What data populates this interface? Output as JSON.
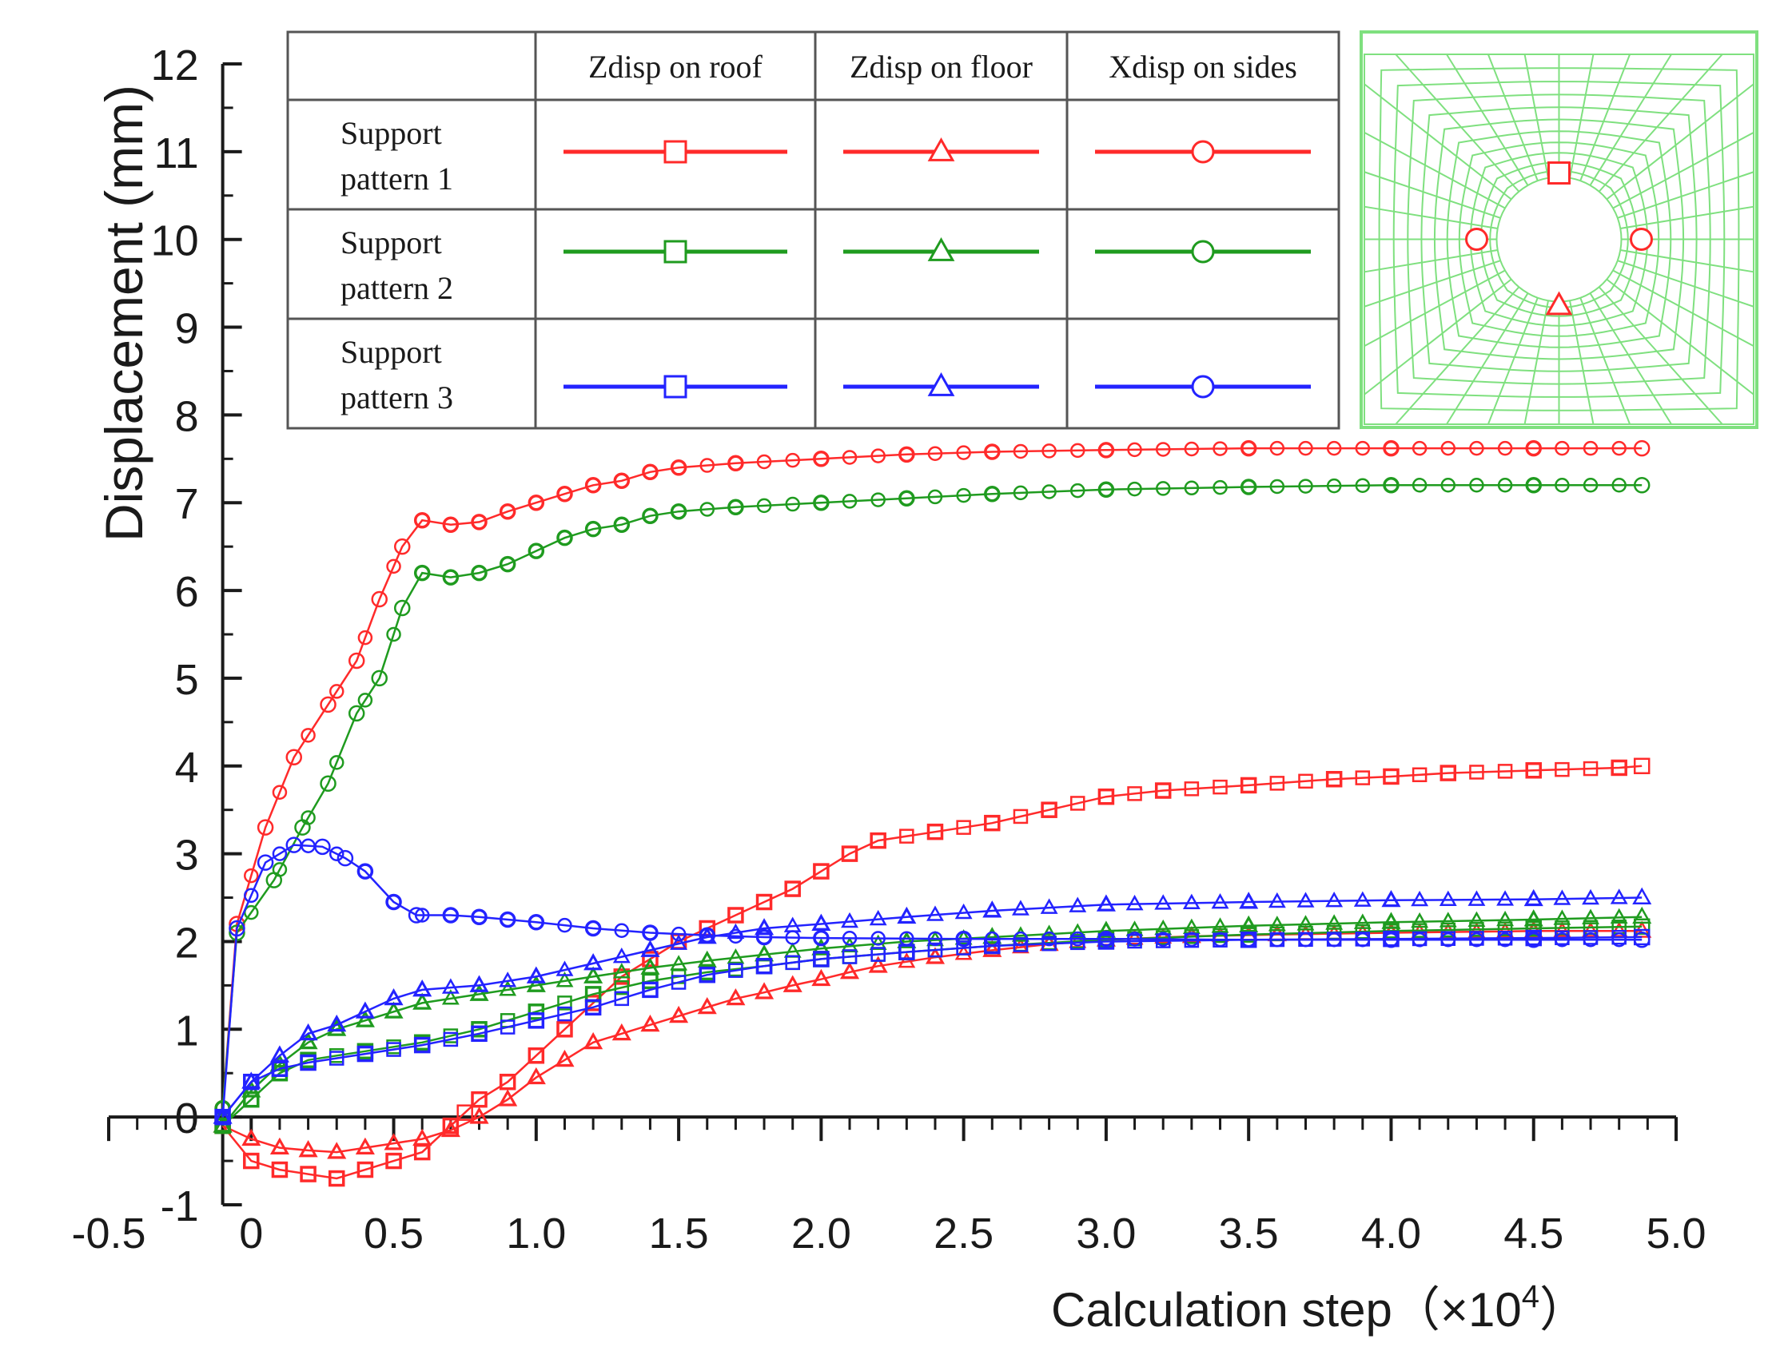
{
  "chart_data": {
    "type": "line",
    "title": "",
    "xlabel": "Calculation step（×10",
    "xlabel_exponent": "4",
    "xlabel_close": "）",
    "ylabel": "Displacement (mm)",
    "xlim": [
      -0.5,
      5.0
    ],
    "ylim": [
      -1,
      12
    ],
    "x_ticks": [
      -0.5,
      0,
      0.5,
      1.0,
      1.5,
      2.0,
      2.5,
      3.0,
      3.5,
      4.0,
      4.5,
      5.0
    ],
    "x_tick_labels": [
      "-0.5",
      "0",
      "0.5",
      "1.0",
      "1.5",
      "2.0",
      "2.5",
      "3.0",
      "3.5",
      "4.0",
      "4.5",
      "5.0"
    ],
    "y_ticks": [
      -1,
      0,
      1,
      2,
      3,
      4,
      5,
      6,
      7,
      8,
      9,
      10,
      11,
      12
    ],
    "y_tick_labels": [
      "-1",
      "0",
      "1",
      "2",
      "3",
      "4",
      "5",
      "6",
      "7",
      "8",
      "9",
      "10",
      "11",
      "12"
    ],
    "colors": {
      "pattern1": "#ff2a2a",
      "pattern2": "#1f9b1f",
      "pattern3": "#2323ff",
      "mesh": "#7fe07f"
    },
    "legend": {
      "column_headers": [
        "Zdisp on roof",
        "Zdisp on floor",
        "Xdisp on sides"
      ],
      "rows": [
        {
          "label_line1": "Support",
          "label_line2": "pattern 1",
          "color": "#ff2a2a"
        },
        {
          "label_line1": "Support",
          "label_line2": "pattern 2",
          "color": "#1f9b1f"
        },
        {
          "label_line1": "Support",
          "label_line2": "pattern 3",
          "color": "#2323ff"
        }
      ],
      "markers": [
        "square",
        "triangle",
        "circle"
      ]
    },
    "series": [
      {
        "name": "Support pattern 1 - Zdisp on roof",
        "color": "#ff2a2a",
        "marker": "square",
        "points": [
          [
            -0.1,
            -0.1
          ],
          [
            0,
            -0.5
          ],
          [
            0.1,
            -0.6
          ],
          [
            0.2,
            -0.65
          ],
          [
            0.3,
            -0.7
          ],
          [
            0.4,
            -0.6
          ],
          [
            0.5,
            -0.5
          ],
          [
            0.6,
            -0.4
          ],
          [
            0.7,
            -0.1
          ],
          [
            0.75,
            0.05
          ],
          [
            0.8,
            0.2
          ],
          [
            0.9,
            0.4
          ],
          [
            1.0,
            0.7
          ],
          [
            1.1,
            1.0
          ],
          [
            1.2,
            1.3
          ],
          [
            1.3,
            1.6
          ],
          [
            1.4,
            1.8
          ],
          [
            1.5,
            2.0
          ],
          [
            1.6,
            2.15
          ],
          [
            1.7,
            2.3
          ],
          [
            1.8,
            2.45
          ],
          [
            1.9,
            2.6
          ],
          [
            2.0,
            2.8
          ],
          [
            2.1,
            3.0
          ],
          [
            2.2,
            3.15
          ],
          [
            2.4,
            3.25
          ],
          [
            2.6,
            3.35
          ],
          [
            2.8,
            3.5
          ],
          [
            3.0,
            3.65
          ],
          [
            3.2,
            3.72
          ],
          [
            3.5,
            3.78
          ],
          [
            3.8,
            3.85
          ],
          [
            4.0,
            3.88
          ],
          [
            4.2,
            3.92
          ],
          [
            4.5,
            3.95
          ],
          [
            4.8,
            3.98
          ],
          [
            4.88,
            4.0
          ]
        ]
      },
      {
        "name": "Support pattern 1 - Zdisp on floor",
        "color": "#ff2a2a",
        "marker": "triangle",
        "points": [
          [
            -0.1,
            -0.1
          ],
          [
            0,
            -0.25
          ],
          [
            0.1,
            -0.35
          ],
          [
            0.2,
            -0.38
          ],
          [
            0.3,
            -0.4
          ],
          [
            0.4,
            -0.35
          ],
          [
            0.5,
            -0.3
          ],
          [
            0.6,
            -0.25
          ],
          [
            0.7,
            -0.15
          ],
          [
            0.8,
            0.0
          ],
          [
            0.9,
            0.2
          ],
          [
            1.0,
            0.45
          ],
          [
            1.1,
            0.65
          ],
          [
            1.2,
            0.85
          ],
          [
            1.3,
            0.95
          ],
          [
            1.4,
            1.05
          ],
          [
            1.5,
            1.15
          ],
          [
            1.6,
            1.25
          ],
          [
            1.7,
            1.35
          ],
          [
            1.8,
            1.42
          ],
          [
            1.9,
            1.5
          ],
          [
            2.0,
            1.57
          ],
          [
            2.1,
            1.65
          ],
          [
            2.2,
            1.72
          ],
          [
            2.4,
            1.82
          ],
          [
            2.6,
            1.9
          ],
          [
            2.8,
            1.97
          ],
          [
            3.0,
            2.02
          ],
          [
            3.3,
            2.06
          ],
          [
            3.6,
            2.08
          ],
          [
            4.0,
            2.1
          ],
          [
            4.5,
            2.12
          ],
          [
            4.88,
            2.12
          ]
        ]
      },
      {
        "name": "Support pattern 1 - Xdisp on sides",
        "color": "#ff2a2a",
        "marker": "circle",
        "points": [
          [
            -0.1,
            0.1
          ],
          [
            -0.05,
            2.2
          ],
          [
            0.05,
            3.3
          ],
          [
            0.15,
            4.1
          ],
          [
            0.27,
            4.7
          ],
          [
            0.37,
            5.2
          ],
          [
            0.45,
            5.9
          ],
          [
            0.53,
            6.5
          ],
          [
            0.6,
            6.8
          ],
          [
            0.7,
            6.75
          ],
          [
            0.8,
            6.78
          ],
          [
            0.9,
            6.9
          ],
          [
            1.0,
            7.0
          ],
          [
            1.1,
            7.1
          ],
          [
            1.2,
            7.2
          ],
          [
            1.3,
            7.25
          ],
          [
            1.4,
            7.35
          ],
          [
            1.5,
            7.4
          ],
          [
            1.7,
            7.45
          ],
          [
            2.0,
            7.5
          ],
          [
            2.3,
            7.55
          ],
          [
            2.6,
            7.58
          ],
          [
            3.0,
            7.6
          ],
          [
            3.5,
            7.62
          ],
          [
            4.0,
            7.62
          ],
          [
            4.5,
            7.62
          ],
          [
            4.88,
            7.62
          ]
        ]
      },
      {
        "name": "Support pattern 2 - Zdisp on roof",
        "color": "#1f9b1f",
        "marker": "square",
        "points": [
          [
            -0.1,
            -0.1
          ],
          [
            0,
            0.2
          ],
          [
            0.1,
            0.5
          ],
          [
            0.2,
            0.65
          ],
          [
            0.4,
            0.75
          ],
          [
            0.6,
            0.85
          ],
          [
            0.8,
            1.0
          ],
          [
            1.0,
            1.2
          ],
          [
            1.2,
            1.4
          ],
          [
            1.4,
            1.55
          ],
          [
            1.6,
            1.65
          ],
          [
            1.8,
            1.72
          ],
          [
            2.0,
            1.8
          ],
          [
            2.3,
            1.88
          ],
          [
            2.6,
            1.95
          ],
          [
            3.0,
            2.02
          ],
          [
            3.5,
            2.08
          ],
          [
            4.0,
            2.12
          ],
          [
            4.5,
            2.15
          ],
          [
            4.88,
            2.17
          ]
        ]
      },
      {
        "name": "Support pattern 2 - Zdisp on floor",
        "color": "#1f9b1f",
        "marker": "triangle",
        "points": [
          [
            -0.1,
            -0.1
          ],
          [
            0,
            0.3
          ],
          [
            0.1,
            0.6
          ],
          [
            0.2,
            0.85
          ],
          [
            0.3,
            1.0
          ],
          [
            0.4,
            1.1
          ],
          [
            0.5,
            1.2
          ],
          [
            0.6,
            1.3
          ],
          [
            0.8,
            1.4
          ],
          [
            1.0,
            1.5
          ],
          [
            1.2,
            1.6
          ],
          [
            1.4,
            1.7
          ],
          [
            1.6,
            1.78
          ],
          [
            1.8,
            1.85
          ],
          [
            2.0,
            1.92
          ],
          [
            2.3,
            2.0
          ],
          [
            2.6,
            2.05
          ],
          [
            3.0,
            2.12
          ],
          [
            3.5,
            2.18
          ],
          [
            4.0,
            2.22
          ],
          [
            4.5,
            2.25
          ],
          [
            4.88,
            2.28
          ]
        ]
      },
      {
        "name": "Support pattern 2 - Xdisp on sides",
        "color": "#1f9b1f",
        "marker": "circle",
        "points": [
          [
            -0.1,
            0.1
          ],
          [
            -0.05,
            2.1
          ],
          [
            0.08,
            2.7
          ],
          [
            0.18,
            3.3
          ],
          [
            0.27,
            3.8
          ],
          [
            0.37,
            4.6
          ],
          [
            0.45,
            5.0
          ],
          [
            0.53,
            5.8
          ],
          [
            0.6,
            6.2
          ],
          [
            0.7,
            6.15
          ],
          [
            0.8,
            6.2
          ],
          [
            0.9,
            6.3
          ],
          [
            1.0,
            6.45
          ],
          [
            1.1,
            6.6
          ],
          [
            1.2,
            6.7
          ],
          [
            1.3,
            6.75
          ],
          [
            1.4,
            6.85
          ],
          [
            1.5,
            6.9
          ],
          [
            1.7,
            6.95
          ],
          [
            2.0,
            7.0
          ],
          [
            2.3,
            7.05
          ],
          [
            2.6,
            7.1
          ],
          [
            3.0,
            7.15
          ],
          [
            3.5,
            7.18
          ],
          [
            4.0,
            7.2
          ],
          [
            4.5,
            7.2
          ],
          [
            4.88,
            7.2
          ]
        ]
      },
      {
        "name": "Support pattern 3 - Zdisp on roof",
        "color": "#2323ff",
        "marker": "square",
        "points": [
          [
            -0.1,
            0.0
          ],
          [
            0,
            0.4
          ],
          [
            0.1,
            0.55
          ],
          [
            0.2,
            0.62
          ],
          [
            0.4,
            0.72
          ],
          [
            0.6,
            0.82
          ],
          [
            0.8,
            0.95
          ],
          [
            1.0,
            1.1
          ],
          [
            1.2,
            1.25
          ],
          [
            1.4,
            1.45
          ],
          [
            1.6,
            1.62
          ],
          [
            1.8,
            1.72
          ],
          [
            2.0,
            1.8
          ],
          [
            2.3,
            1.88
          ],
          [
            2.6,
            1.95
          ],
          [
            3.0,
            2.0
          ],
          [
            3.5,
            2.02
          ],
          [
            4.0,
            2.03
          ],
          [
            4.5,
            2.04
          ],
          [
            4.88,
            2.05
          ]
        ]
      },
      {
        "name": "Support pattern 3 - Zdisp on floor",
        "color": "#2323ff",
        "marker": "triangle",
        "points": [
          [
            -0.1,
            0.0
          ],
          [
            0,
            0.4
          ],
          [
            0.1,
            0.7
          ],
          [
            0.2,
            0.95
          ],
          [
            0.3,
            1.05
          ],
          [
            0.4,
            1.2
          ],
          [
            0.5,
            1.35
          ],
          [
            0.6,
            1.45
          ],
          [
            0.8,
            1.5
          ],
          [
            1.0,
            1.6
          ],
          [
            1.2,
            1.75
          ],
          [
            1.4,
            1.9
          ],
          [
            1.6,
            2.05
          ],
          [
            1.8,
            2.15
          ],
          [
            2.0,
            2.2
          ],
          [
            2.3,
            2.28
          ],
          [
            2.6,
            2.35
          ],
          [
            3.0,
            2.42
          ],
          [
            3.5,
            2.45
          ],
          [
            4.0,
            2.47
          ],
          [
            4.5,
            2.48
          ],
          [
            4.88,
            2.5
          ]
        ]
      },
      {
        "name": "Support pattern 3 - Xdisp on sides",
        "color": "#2323ff",
        "marker": "circle",
        "points": [
          [
            -0.1,
            0.0
          ],
          [
            -0.05,
            2.15
          ],
          [
            0.05,
            2.9
          ],
          [
            0.15,
            3.1
          ],
          [
            0.25,
            3.08
          ],
          [
            0.33,
            2.95
          ],
          [
            0.4,
            2.8
          ],
          [
            0.5,
            2.45
          ],
          [
            0.58,
            2.3
          ],
          [
            0.7,
            2.3
          ],
          [
            0.8,
            2.28
          ],
          [
            0.9,
            2.25
          ],
          [
            1.0,
            2.22
          ],
          [
            1.2,
            2.15
          ],
          [
            1.4,
            2.1
          ],
          [
            1.6,
            2.07
          ],
          [
            1.8,
            2.05
          ],
          [
            2.0,
            2.04
          ],
          [
            2.5,
            2.03
          ],
          [
            3.0,
            2.03
          ],
          [
            3.5,
            2.02
          ],
          [
            4.0,
            2.02
          ],
          [
            4.5,
            2.02
          ],
          [
            4.88,
            2.02
          ]
        ]
      }
    ]
  }
}
